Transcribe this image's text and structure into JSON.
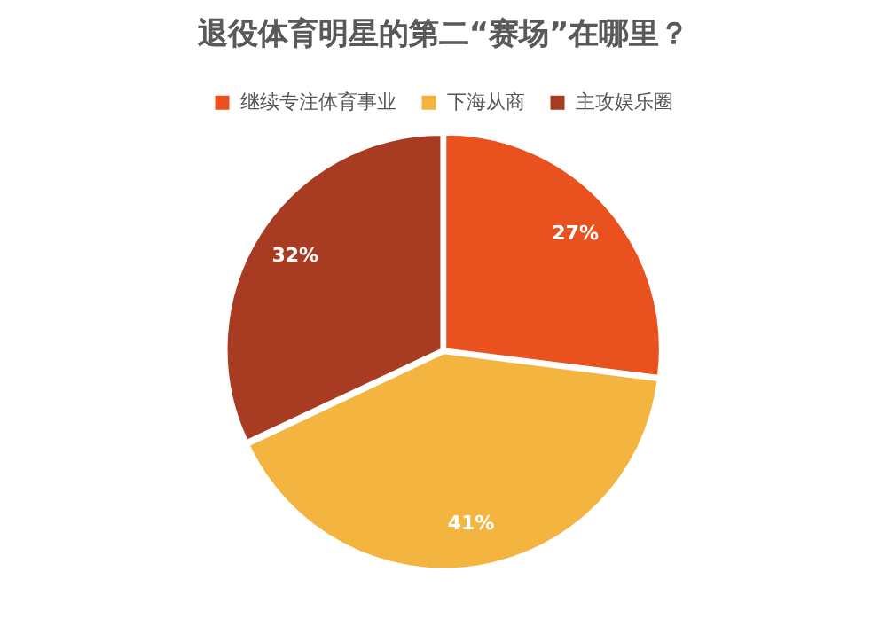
{
  "chart_data": {
    "type": "pie",
    "title": "退役体育明星的第二“赛场”在哪里？",
    "categories": [
      "继续专注体育事业",
      "下海从商",
      "主攻娱乐圈"
    ],
    "values": [
      27,
      41,
      32
    ],
    "colors": [
      "#e9521f",
      "#f4b540",
      "#a83c22"
    ],
    "value_labels": [
      "27%",
      "41%",
      "32%"
    ],
    "legend": "top"
  }
}
